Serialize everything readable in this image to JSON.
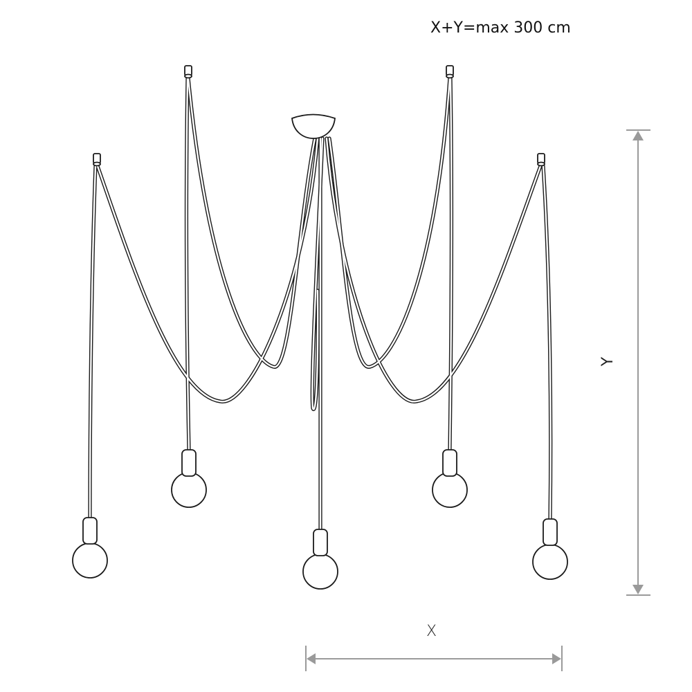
{
  "diagram": {
    "formula": "X+Y=max 300 cm",
    "x_dimension_label": "X",
    "y_dimension_label": "Y",
    "pendant_count": 5,
    "colors": {
      "line": "#1a1a1a",
      "dimension": "#9a9a9a"
    }
  }
}
